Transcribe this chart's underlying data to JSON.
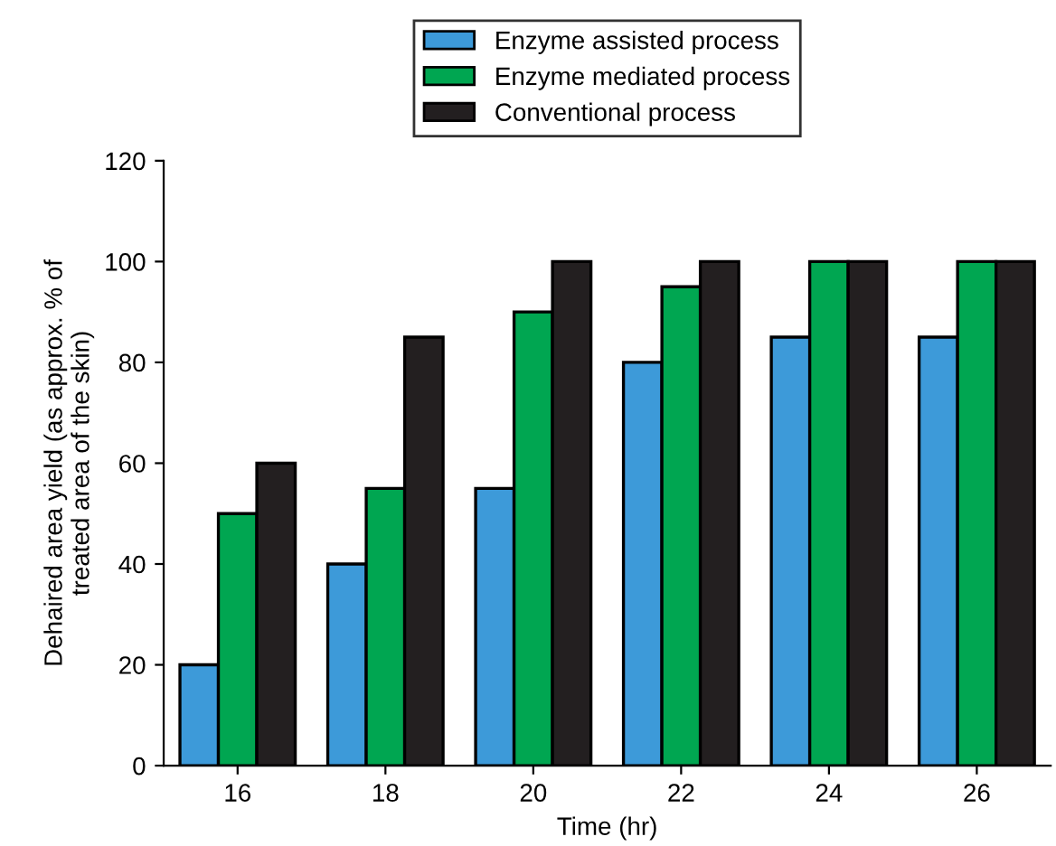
{
  "chart_data": {
    "type": "bar",
    "xlabel": "Time (hr)",
    "ylabel": "Dehaired area yield (as approx. % of\ntreated area of the skin)",
    "categories": [
      "16",
      "18",
      "20",
      "22",
      "24",
      "26"
    ],
    "series": [
      {
        "name": "Enzyme assisted process",
        "color": "#3d9ad9",
        "values": [
          20,
          40,
          55,
          80,
          85,
          85
        ]
      },
      {
        "name": "Enzyme mediated process",
        "color": "#00a651",
        "values": [
          50,
          55,
          90,
          95,
          100,
          100
        ]
      },
      {
        "name": "Conventional process",
        "color": "#231f20",
        "values": [
          60,
          85,
          100,
          100,
          100,
          100
        ]
      }
    ],
    "ylim": [
      0,
      120
    ],
    "yticks": [
      0,
      20,
      40,
      60,
      80,
      100,
      120
    ],
    "grid": false,
    "legend": "top"
  }
}
